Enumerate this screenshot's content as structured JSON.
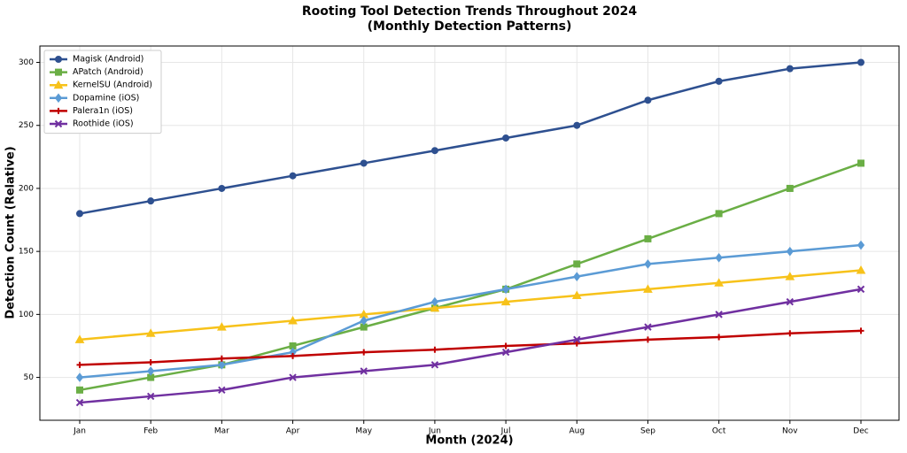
{
  "chart_data": {
    "type": "line",
    "title": "Rooting Tool Detection Trends Throughout 2024",
    "subtitle": "(Monthly Detection Patterns)",
    "x_label": "Month (2024)",
    "y_label": "Detection Count (Relative)",
    "categories": [
      "Jan",
      "Feb",
      "Mar",
      "Apr",
      "May",
      "Jun",
      "Jul",
      "Aug",
      "Sep",
      "Oct",
      "Nov",
      "Dec"
    ],
    "series": [
      {
        "name": "Magisk (Android)",
        "color": "#2e5090",
        "marker": "circle",
        "values": [
          180,
          190,
          200,
          210,
          220,
          230,
          240,
          250,
          270,
          285,
          295,
          300
        ]
      },
      {
        "name": "APatch (Android)",
        "color": "#6aae45",
        "marker": "square",
        "values": [
          40,
          50,
          60,
          75,
          90,
          105,
          120,
          140,
          160,
          180,
          200,
          220
        ]
      },
      {
        "name": "KernelSU (Android)",
        "color": "#f7c21a",
        "marker": "triangle",
        "values": [
          80,
          85,
          90,
          95,
          100,
          105,
          110,
          115,
          120,
          125,
          130,
          135
        ]
      },
      {
        "name": "Dopamine (iOS)",
        "color": "#5b9bd5",
        "marker": "diamond",
        "values": [
          50,
          55,
          60,
          70,
          95,
          110,
          120,
          130,
          140,
          145,
          150,
          155
        ]
      },
      {
        "name": "Palera1n (iOS)",
        "color": "#c00000",
        "marker": "plus",
        "values": [
          60,
          62,
          65,
          67,
          70,
          72,
          75,
          77,
          80,
          82,
          85,
          87
        ]
      },
      {
        "name": "Roothide (iOS)",
        "color": "#7030a0",
        "marker": "x",
        "values": [
          30,
          35,
          40,
          50,
          55,
          60,
          70,
          80,
          90,
          100,
          110,
          120
        ]
      }
    ],
    "ylim": [
      16,
      313
    ],
    "yticks": [
      50,
      100,
      150,
      200,
      250,
      300
    ],
    "grid": true,
    "legend": "upper-left"
  }
}
